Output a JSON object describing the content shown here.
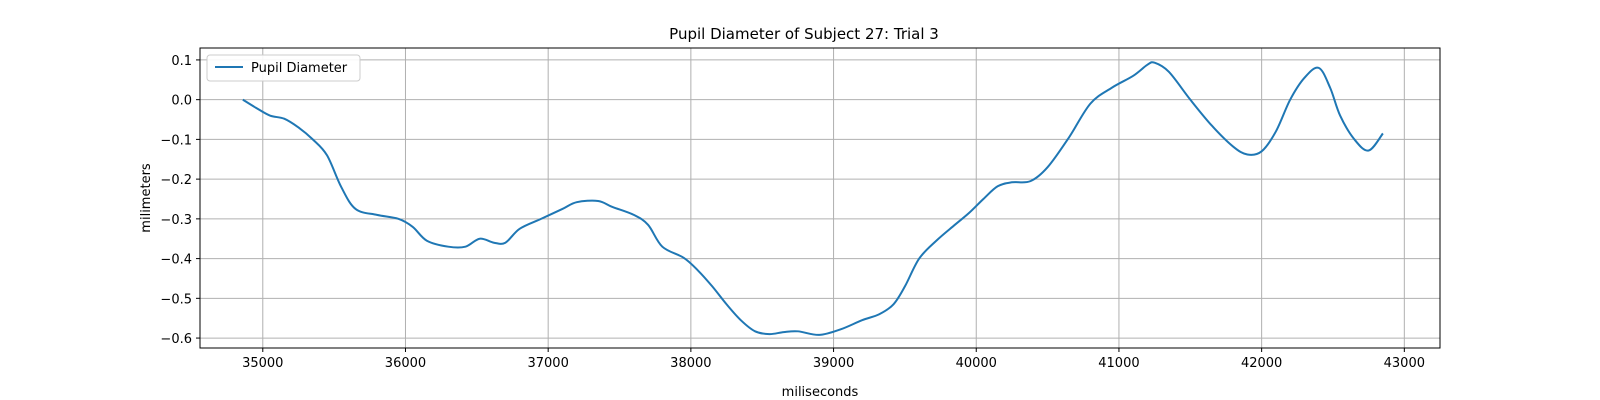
{
  "chart_data": {
    "type": "line",
    "title": "Pupil Diameter of Subject 27: Trial 3",
    "xlabel": "miliseconds",
    "ylabel": "milimeters",
    "xlim": [
      34560,
      43250
    ],
    "ylim": [
      -0.625,
      0.13
    ],
    "xticks": [
      35000,
      36000,
      37000,
      38000,
      39000,
      40000,
      41000,
      42000,
      43000
    ],
    "yticks": [
      0.1,
      0.0,
      -0.1,
      -0.2,
      -0.3,
      -0.4,
      -0.5,
      -0.6
    ],
    "xtick_labels": [
      "35000",
      "36000",
      "37000",
      "38000",
      "39000",
      "40000",
      "41000",
      "42000",
      "43000"
    ],
    "ytick_labels": [
      "0.1",
      "0.0",
      "−0.1",
      "−0.2",
      "−0.3",
      "−0.4",
      "−0.5",
      "−0.6"
    ],
    "grid": true,
    "legend": {
      "position": "top-left",
      "entries": [
        "Pupil Diameter"
      ]
    },
    "line_color": "#1f77b4",
    "series": [
      {
        "name": "Pupil Diameter",
        "x": [
          34860,
          34950,
          35050,
          35150,
          35250,
          35350,
          35450,
          35550,
          35650,
          35800,
          35950,
          36050,
          36150,
          36300,
          36420,
          36520,
          36620,
          36700,
          36800,
          36950,
          37100,
          37200,
          37350,
          37450,
          37600,
          37700,
          37800,
          37950,
          38050,
          38150,
          38250,
          38350,
          38450,
          38550,
          38650,
          38750,
          38900,
          39050,
          39200,
          39320,
          39420,
          39500,
          39600,
          39720,
          39850,
          39950,
          40050,
          40150,
          40250,
          40380,
          40500,
          40650,
          40800,
          40950,
          41100,
          41200,
          41250,
          41350,
          41500,
          41650,
          41800,
          41900,
          42000,
          42100,
          42200,
          42300,
          42400,
          42480,
          42550,
          42650,
          42750,
          42850
        ],
        "y": [
          0.0,
          -0.02,
          -0.04,
          -0.048,
          -0.07,
          -0.1,
          -0.14,
          -0.22,
          -0.275,
          -0.29,
          -0.3,
          -0.32,
          -0.355,
          -0.37,
          -0.37,
          -0.35,
          -0.36,
          -0.36,
          -0.325,
          -0.3,
          -0.275,
          -0.258,
          -0.255,
          -0.27,
          -0.29,
          -0.315,
          -0.37,
          -0.398,
          -0.43,
          -0.47,
          -0.515,
          -0.555,
          -0.583,
          -0.59,
          -0.585,
          -0.583,
          -0.592,
          -0.578,
          -0.555,
          -0.54,
          -0.515,
          -0.47,
          -0.4,
          -0.355,
          -0.315,
          -0.285,
          -0.25,
          -0.218,
          -0.208,
          -0.205,
          -0.17,
          -0.095,
          -0.01,
          0.03,
          0.06,
          0.088,
          0.093,
          0.07,
          0.0,
          -0.065,
          -0.118,
          -0.138,
          -0.13,
          -0.08,
          0.0,
          0.055,
          0.08,
          0.03,
          -0.04,
          -0.1,
          -0.128,
          -0.085
        ]
      }
    ]
  }
}
